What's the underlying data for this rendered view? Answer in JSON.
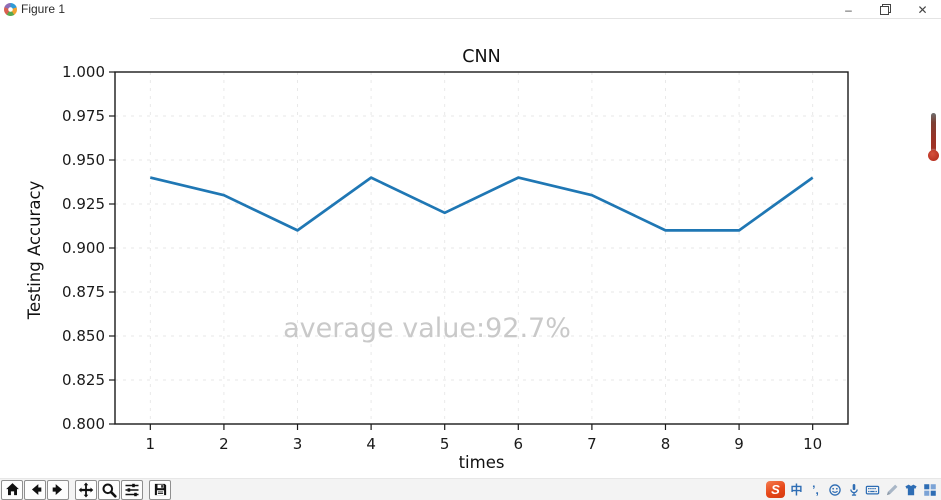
{
  "window": {
    "title": "Figure 1",
    "controls": {
      "minimize_glyph": "–",
      "close_glyph": "✕"
    }
  },
  "chart_data": {
    "type": "line",
    "title": "CNN",
    "xlabel": "times",
    "ylabel": "Testing Accuracy",
    "x": [
      1,
      2,
      3,
      4,
      5,
      6,
      7,
      8,
      9,
      10
    ],
    "values": [
      0.94,
      0.93,
      0.91,
      0.94,
      0.92,
      0.94,
      0.93,
      0.91,
      0.91,
      0.94
    ],
    "xticks": [
      "1",
      "2",
      "3",
      "4",
      "5",
      "6",
      "7",
      "8",
      "9",
      "10"
    ],
    "yticks": [
      "1.000",
      "0.975",
      "0.950",
      "0.925",
      "0.900",
      "0.875",
      "0.850",
      "0.825",
      "0.800"
    ],
    "xlim": [
      0.52,
      10.48
    ],
    "ylim": [
      0.8,
      1.0
    ],
    "grid": true,
    "legend": null,
    "annotation": "average value:92.7%",
    "line_color": "#1f77b4",
    "annotation_color": "#c9c9c9",
    "grid_color": "#e7e7e7",
    "axis_color": "#1a1a1a"
  },
  "toolbar": {
    "items": [
      {
        "name": "home-button",
        "icon": "home-icon"
      },
      {
        "name": "back-button",
        "icon": "back-icon"
      },
      {
        "name": "forward-button",
        "icon": "forward-icon"
      },
      {
        "name": "pan-button",
        "icon": "pan-icon",
        "group_start": true
      },
      {
        "name": "zoom-button",
        "icon": "zoom-icon"
      },
      {
        "name": "configure-subplots-button",
        "icon": "subplots-icon"
      },
      {
        "name": "save-button",
        "icon": "save-icon",
        "group_start": true
      }
    ]
  },
  "taskbar": {
    "items": [
      {
        "name": "sogou-input-logo",
        "icon": "sogou-logo-icon",
        "label": "S"
      },
      {
        "name": "chinese-mode-toggle",
        "icon": "chinese-mode-icon",
        "label": "中"
      },
      {
        "name": "punctuation-toggle",
        "icon": "punctuation-icon",
        "label": "’,"
      },
      {
        "name": "emoji-picker",
        "icon": "emoji-icon"
      },
      {
        "name": "voice-input",
        "icon": "microphone-icon"
      },
      {
        "name": "soft-keyboard",
        "icon": "keyboard-icon"
      },
      {
        "name": "handwriting-input",
        "icon": "handwriting-icon"
      },
      {
        "name": "skin-settings",
        "icon": "shirt-icon"
      },
      {
        "name": "toolbox",
        "icon": "toolbox-grid-icon"
      }
    ]
  }
}
